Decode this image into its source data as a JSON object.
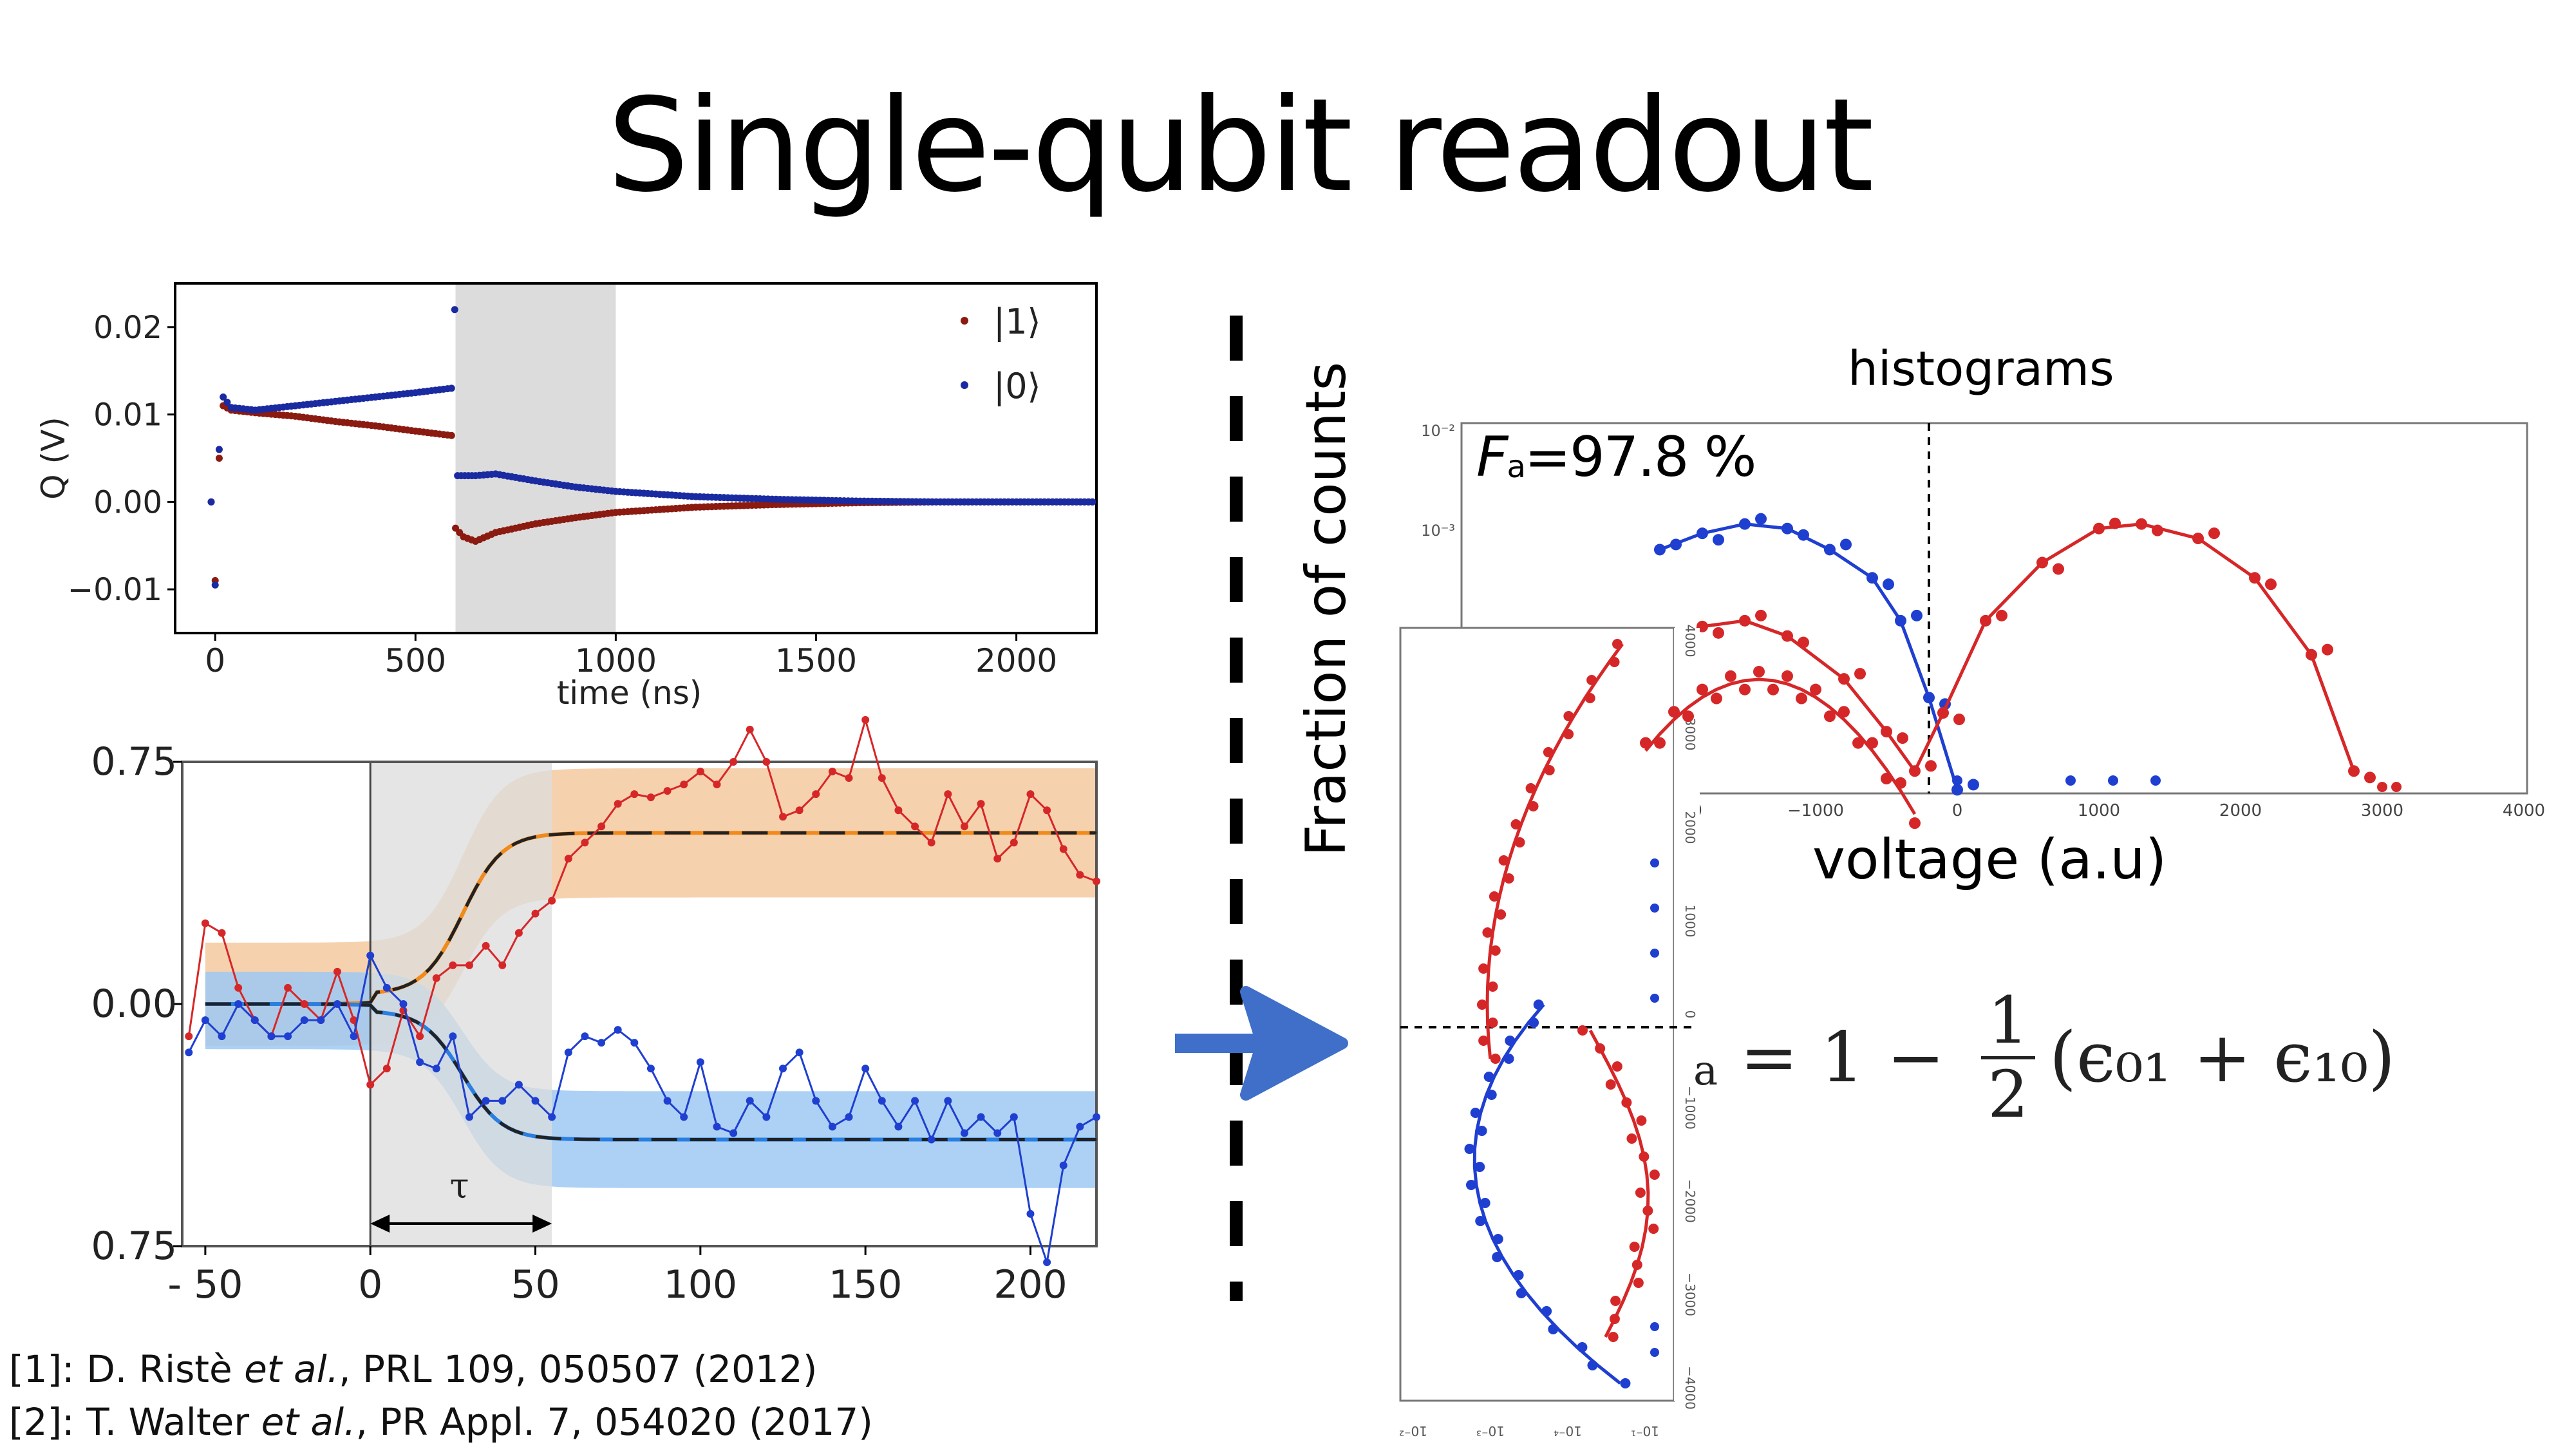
{
  "slide": {
    "title": "Single-qubit readout",
    "references": [
      {
        "prefix": "[1]: D. Ristè ",
        "italic": "et al.",
        "suffix": ", PRL 109, 050507 (2012)"
      },
      {
        "prefix": "[2]: T. Walter ",
        "italic": "et al.",
        "suffix": ", PR Appl. 7, 054020 (2017)"
      }
    ],
    "fidelity": {
      "symbol": "F",
      "sub": "a",
      "value": "=97.8 %"
    },
    "formula": {
      "lhs": "a",
      "eq": " = 1 − ",
      "num": "1",
      "den": "2",
      "rest": "(ϵ₀₁ + ϵ₁₀)"
    },
    "histograms_label": "histograms",
    "voltage_label": "voltage (a.u)",
    "fraction_label": "Fraction of counts"
  },
  "colors": {
    "red": "#d62728",
    "blue": "#1f3fd0",
    "darkred": "#8b1a10",
    "navy": "#1a2aa0",
    "arrow": "#3f6fc8",
    "shade": "#dcdcdc",
    "orange_band": "#f5c9a0",
    "blue_band": "#9ec9f3"
  },
  "chart_data": [
    {
      "type": "scatter",
      "xlabel": "time (ns)",
      "ylabel": "Q (V)",
      "xlim": [
        -100,
        2200
      ],
      "ylim": [
        -0.015,
        0.025
      ],
      "xticks": [
        "0",
        "500",
        "1000",
        "1500",
        "2000"
      ],
      "yticks": [
        "0.02",
        "0.01",
        "0.00",
        "−0.01"
      ],
      "shaded_region": [
        600,
        1000
      ],
      "legend": {
        "placement": "top-right",
        "entries": [
          "|1⟩",
          "|0⟩"
        ]
      },
      "series": [
        {
          "name": "|1⟩",
          "color": "darkred",
          "points": [
            [
              -10,
              0
            ],
            [
              0,
              -0.009
            ],
            [
              10,
              0.005
            ],
            [
              20,
              0.011
            ],
            [
              40,
              0.0105
            ],
            [
              100,
              0.0102
            ],
            [
              200,
              0.0098
            ],
            [
              300,
              0.0092
            ],
            [
              400,
              0.0087
            ],
            [
              500,
              0.0081
            ],
            [
              590,
              0.0076
            ],
            [
              600,
              -0.003
            ],
            [
              620,
              -0.004
            ],
            [
              650,
              -0.0045
            ],
            [
              700,
              -0.0035
            ],
            [
              800,
              -0.0025
            ],
            [
              900,
              -0.0018
            ],
            [
              1000,
              -0.0012
            ],
            [
              1200,
              -0.0006
            ],
            [
              1400,
              -0.0003
            ],
            [
              1600,
              -0.0001
            ],
            [
              1800,
              0
            ],
            [
              2000,
              0
            ],
            [
              2200,
              0
            ]
          ]
        },
        {
          "name": "|0⟩",
          "color": "navy",
          "points": [
            [
              -10,
              0
            ],
            [
              0,
              -0.0095
            ],
            [
              10,
              0.006
            ],
            [
              20,
              0.012
            ],
            [
              40,
              0.0108
            ],
            [
              100,
              0.0105
            ],
            [
              200,
              0.011
            ],
            [
              300,
              0.0115
            ],
            [
              400,
              0.012
            ],
            [
              500,
              0.0125
            ],
            [
              590,
              0.013
            ],
            [
              598,
              0.022
            ],
            [
              605,
              0.003
            ],
            [
              650,
              0.003
            ],
            [
              700,
              0.0032
            ],
            [
              800,
              0.0024
            ],
            [
              900,
              0.0017
            ],
            [
              1000,
              0.0012
            ],
            [
              1200,
              0.0006
            ],
            [
              1400,
              0.0003
            ],
            [
              1600,
              0.0001
            ],
            [
              1800,
              0
            ],
            [
              2000,
              0
            ],
            [
              2200,
              0
            ]
          ]
        }
      ]
    },
    {
      "type": "line",
      "xlim": [
        -57,
        220
      ],
      "ylim": [
        -0.75,
        0.75
      ],
      "xticks": [
        "- 50",
        "0",
        "50",
        "100",
        "150",
        "200"
      ],
      "yticks": [
        "0.75",
        "0.00",
        "0.75"
      ],
      "shaded_region": [
        0,
        55
      ],
      "annotation": "τ",
      "series": [
        {
          "name": "",
          "color": "red",
          "x": [
            -55,
            -50,
            -45,
            -40,
            -35,
            -30,
            -25,
            -20,
            -15,
            -10,
            -5,
            0,
            5,
            10,
            15,
            20,
            25,
            30,
            35,
            40,
            45,
            50,
            55,
            60,
            65,
            70,
            75,
            80,
            85,
            90,
            95,
            100,
            105,
            110,
            115,
            120,
            125,
            130,
            135,
            140,
            145,
            150,
            155,
            160,
            165,
            170,
            175,
            180,
            185,
            190,
            195,
            200,
            205,
            210,
            215,
            220
          ],
          "y": [
            -0.1,
            0.25,
            0.22,
            0.05,
            -0.05,
            -0.1,
            0.05,
            0.0,
            -0.05,
            0.1,
            -0.05,
            -0.25,
            -0.2,
            -0.02,
            -0.1,
            0.08,
            0.12,
            0.12,
            0.18,
            0.12,
            0.22,
            0.28,
            0.32,
            0.45,
            0.5,
            0.55,
            0.62,
            0.65,
            0.64,
            0.66,
            0.68,
            0.72,
            0.68,
            0.75,
            0.85,
            0.75,
            0.58,
            0.6,
            0.65,
            0.72,
            0.7,
            0.88,
            0.7,
            0.6,
            0.55,
            0.5,
            0.65,
            0.55,
            0.62,
            0.45,
            0.5,
            0.65,
            0.6,
            0.48,
            0.4,
            0.38
          ]
        },
        {
          "name": "",
          "color": "blue",
          "x": [
            -55,
            -50,
            -45,
            -40,
            -35,
            -30,
            -25,
            -20,
            -15,
            -10,
            -5,
            0,
            5,
            10,
            15,
            20,
            25,
            30,
            35,
            40,
            45,
            50,
            55,
            60,
            65,
            70,
            75,
            80,
            85,
            90,
            95,
            100,
            105,
            110,
            115,
            120,
            125,
            130,
            135,
            140,
            145,
            150,
            155,
            160,
            165,
            170,
            175,
            180,
            185,
            190,
            195,
            200,
            205,
            210,
            215,
            220
          ],
          "y": [
            -0.15,
            -0.05,
            -0.1,
            0.0,
            -0.05,
            -0.1,
            -0.1,
            -0.05,
            -0.05,
            0.0,
            -0.1,
            0.15,
            0.05,
            0.0,
            -0.18,
            -0.2,
            -0.1,
            -0.35,
            -0.3,
            -0.3,
            -0.25,
            -0.3,
            -0.35,
            -0.15,
            -0.1,
            -0.12,
            -0.08,
            -0.12,
            -0.2,
            -0.3,
            -0.35,
            -0.18,
            -0.38,
            -0.4,
            -0.3,
            -0.35,
            -0.2,
            -0.15,
            -0.3,
            -0.38,
            -0.35,
            -0.2,
            -0.3,
            -0.38,
            -0.3,
            -0.42,
            -0.3,
            -0.4,
            -0.35,
            -0.4,
            -0.35,
            -0.65,
            -0.8,
            -0.5,
            -0.38,
            -0.35
          ]
        }
      ]
    },
    {
      "type": "scatter",
      "title": "histograms",
      "xlabel": "voltage (a.u)",
      "ylabel": "Fraction of counts",
      "log_y": true,
      "xlim": [
        -2300,
        4000
      ],
      "xticks": [
        "−2000",
        "−1000",
        "0",
        "1000",
        "2000",
        "3000",
        "4000"
      ],
      "threshold": -200,
      "series": [
        {
          "name": "",
          "color": "blue",
          "points": [
            [
              -2100,
              0.0007
            ],
            [
              -1800,
              0.00085
            ],
            [
              -1500,
              0.00095
            ],
            [
              -1200,
              0.0009
            ],
            [
              -900,
              0.0007
            ],
            [
              -600,
              0.0005
            ],
            [
              -400,
              0.0003
            ],
            [
              -200,
              0.00012
            ],
            [
              0,
              4e-05
            ]
          ]
        },
        {
          "name": "",
          "color": "red",
          "points": [
            [
              -2200,
              0.0002
            ],
            [
              -1800,
              0.00028
            ],
            [
              -1500,
              0.0003
            ],
            [
              -1200,
              0.00025
            ],
            [
              -800,
              0.00015
            ],
            [
              -500,
              8e-05
            ],
            [
              -300,
              5e-05
            ],
            [
              -100,
              0.0001
            ],
            [
              200,
              0.0003
            ],
            [
              600,
              0.0006
            ],
            [
              1000,
              0.0009
            ],
            [
              1300,
              0.00095
            ],
            [
              1700,
              0.0008
            ],
            [
              2100,
              0.0005
            ],
            [
              2500,
              0.0002
            ],
            [
              2800,
              5e-05
            ]
          ]
        }
      ]
    }
  ]
}
